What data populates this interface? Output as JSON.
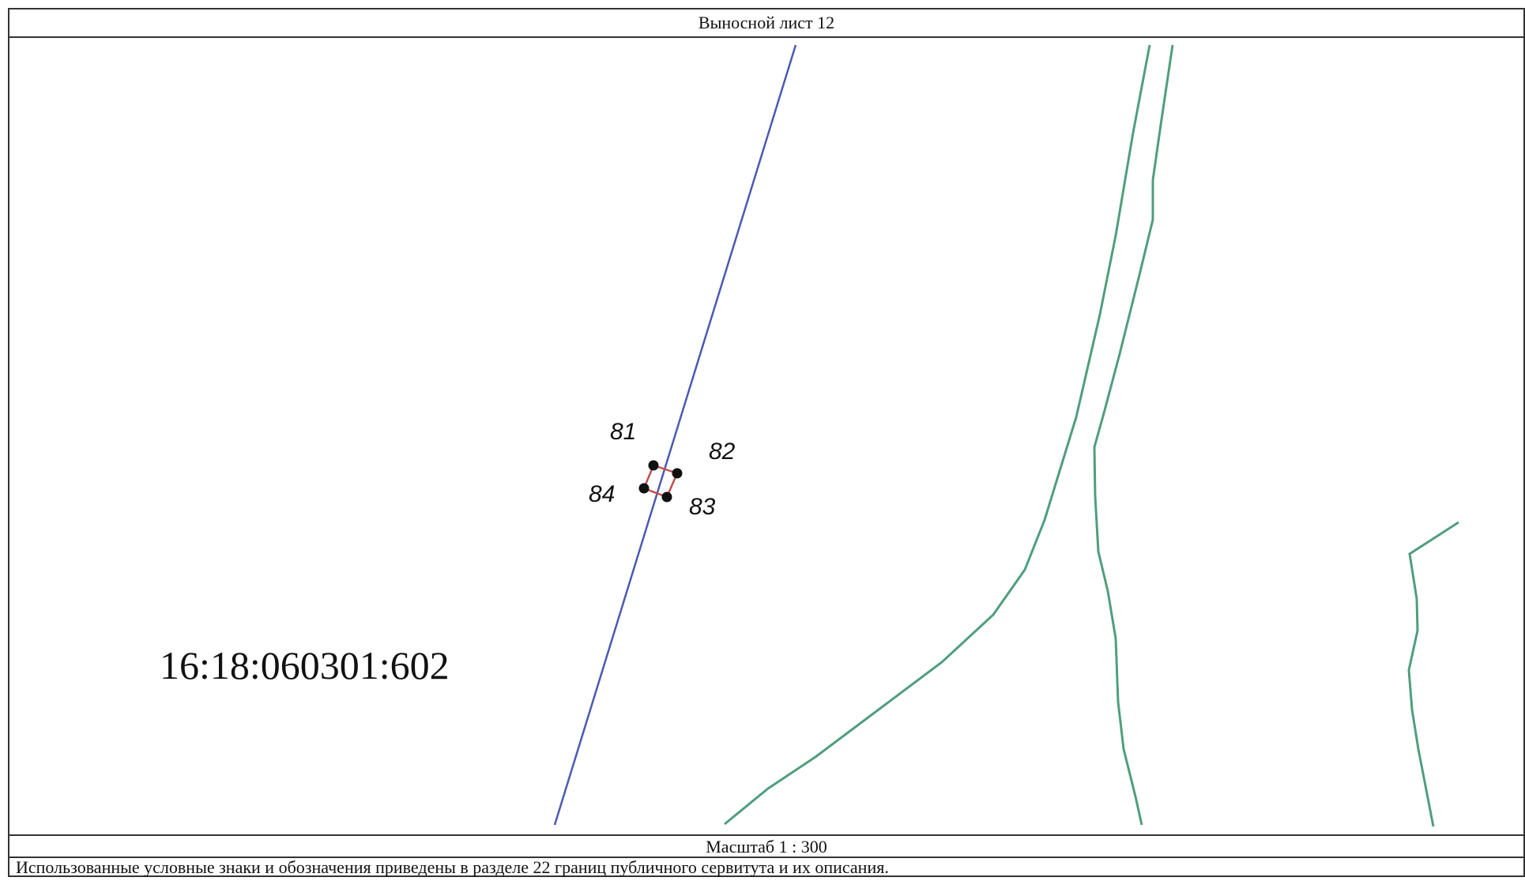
{
  "title": "Выносной лист 12",
  "scale_text": "Масштаб 1 : 300",
  "legend_note": "Использованные условные знаки и обозначения приведены в разделе 22 границ публичного сервитута и их описания.",
  "parcel_number": "16:18:060301:602",
  "points": [
    {
      "label": "81"
    },
    {
      "label": "82"
    },
    {
      "label": "83"
    },
    {
      "label": "84"
    }
  ],
  "colors": {
    "boundary_line": "#4a5ab0",
    "green_lines": "#4f9e7e",
    "servitude_outline": "#c0504d",
    "point_marker": "#111111"
  }
}
